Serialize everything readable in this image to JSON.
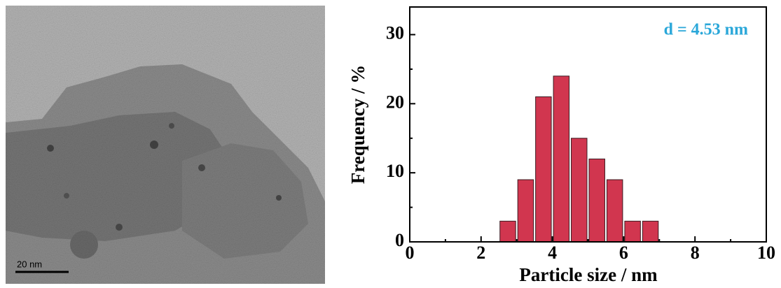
{
  "image": {
    "scale_bar": "20 nm"
  },
  "chart_data": {
    "type": "histogram",
    "xlabel": "Particle size / nm",
    "ylabel": "Frequency / %",
    "annotation": "d = 4.53 nm",
    "annotation_color": "#2aa7d9",
    "bins": [
      2.5,
      3,
      3.5,
      4,
      4.5,
      5,
      5.5,
      6,
      6.5,
      7
    ],
    "values": [
      3,
      9,
      21,
      24,
      15,
      12,
      9,
      3,
      3
    ],
    "color": "#d1364f",
    "xlim": [
      0,
      10
    ],
    "xticks": [
      0,
      2,
      4,
      6,
      8,
      10
    ],
    "xminorticks": [
      1,
      3,
      5,
      7,
      9
    ],
    "ylim": [
      0,
      34
    ],
    "yticks": [
      0,
      10,
      20,
      30
    ],
    "yminorticks": [
      5,
      15,
      25
    ]
  }
}
